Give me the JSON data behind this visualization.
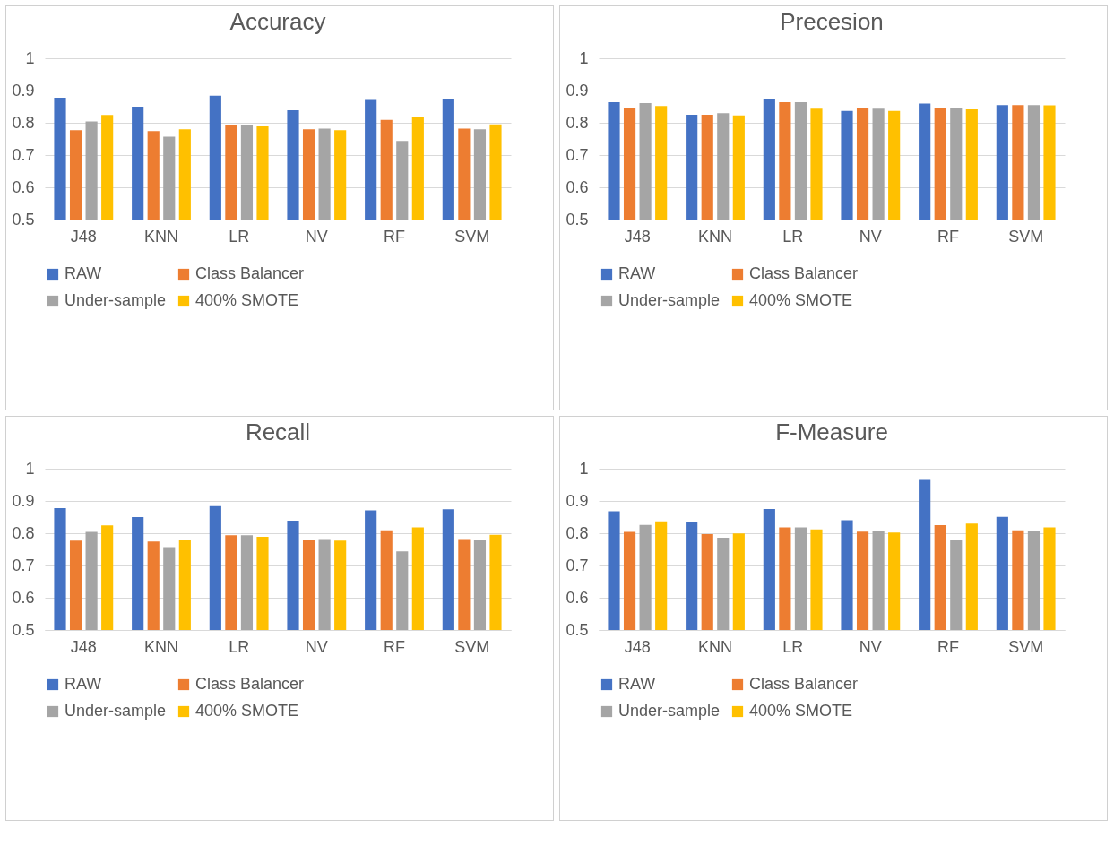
{
  "chart_data": [
    {
      "type": "bar",
      "title": "Accuracy",
      "categories": [
        "J48",
        "KNN",
        "LR",
        "NV",
        "RF",
        "SVM"
      ],
      "ylim": [
        0.5,
        1
      ],
      "yticks": [
        0.5,
        0.6,
        0.7,
        0.8,
        0.9,
        1
      ],
      "grid": "y",
      "legend": "bottom",
      "series": [
        {
          "name": "RAW",
          "color": "#4472c4",
          "values": [
            0.878,
            0.85,
            0.884,
            0.839,
            0.871,
            0.874
          ]
        },
        {
          "name": "Class Balancer",
          "color": "#ed7d31",
          "values": [
            0.777,
            0.774,
            0.794,
            0.78,
            0.809,
            0.782
          ]
        },
        {
          "name": "Under-sample",
          "color": "#a5a5a5",
          "values": [
            0.804,
            0.757,
            0.794,
            0.782,
            0.744,
            0.78
          ]
        },
        {
          "name": "400% SMOTE",
          "color": "#ffc000",
          "values": [
            0.824,
            0.78,
            0.789,
            0.777,
            0.818,
            0.795
          ]
        }
      ]
    },
    {
      "type": "bar",
      "title": "Precesion",
      "categories": [
        "J48",
        "KNN",
        "LR",
        "NV",
        "RF",
        "SVM"
      ],
      "ylim": [
        0.5,
        1
      ],
      "yticks": [
        0.5,
        0.6,
        0.7,
        0.8,
        0.9,
        1
      ],
      "grid": "y",
      "legend": "bottom",
      "series": [
        {
          "name": "RAW",
          "color": "#4472c4",
          "values": [
            0.864,
            0.825,
            0.872,
            0.837,
            0.86,
            0.855
          ]
        },
        {
          "name": "Class Balancer",
          "color": "#ed7d31",
          "values": [
            0.846,
            0.825,
            0.864,
            0.846,
            0.845,
            0.855
          ]
        },
        {
          "name": "Under-sample",
          "color": "#a5a5a5",
          "values": [
            0.861,
            0.83,
            0.864,
            0.844,
            0.845,
            0.855
          ]
        },
        {
          "name": "400% SMOTE",
          "color": "#ffc000",
          "values": [
            0.852,
            0.823,
            0.844,
            0.837,
            0.842,
            0.854
          ]
        }
      ]
    },
    {
      "type": "bar",
      "title": "Recall",
      "categories": [
        "J48",
        "KNN",
        "LR",
        "NV",
        "RF",
        "SVM"
      ],
      "ylim": [
        0.5,
        1
      ],
      "yticks": [
        0.5,
        0.6,
        0.7,
        0.8,
        0.9,
        1
      ],
      "grid": "y",
      "legend": "bottom",
      "series": [
        {
          "name": "RAW",
          "color": "#4472c4",
          "values": [
            0.878,
            0.85,
            0.884,
            0.839,
            0.871,
            0.874
          ]
        },
        {
          "name": "Class Balancer",
          "color": "#ed7d31",
          "values": [
            0.777,
            0.774,
            0.794,
            0.78,
            0.809,
            0.782
          ]
        },
        {
          "name": "Under-sample",
          "color": "#a5a5a5",
          "values": [
            0.804,
            0.757,
            0.794,
            0.782,
            0.744,
            0.78
          ]
        },
        {
          "name": "400% SMOTE",
          "color": "#ffc000",
          "values": [
            0.824,
            0.78,
            0.789,
            0.777,
            0.818,
            0.795
          ]
        }
      ]
    },
    {
      "type": "bar",
      "title": "F-Measure",
      "categories": [
        "J48",
        "KNN",
        "LR",
        "NV",
        "RF",
        "SVM"
      ],
      "ylim": [
        0.5,
        1
      ],
      "yticks": [
        0.5,
        0.6,
        0.7,
        0.8,
        0.9,
        1
      ],
      "grid": "y",
      "legend": "bottom",
      "series": [
        {
          "name": "RAW",
          "color": "#4472c4",
          "values": [
            0.868,
            0.835,
            0.875,
            0.84,
            0.965,
            0.851
          ]
        },
        {
          "name": "Class Balancer",
          "color": "#ed7d31",
          "values": [
            0.804,
            0.797,
            0.818,
            0.805,
            0.825,
            0.809
          ]
        },
        {
          "name": "Under-sample",
          "color": "#a5a5a5",
          "values": [
            0.826,
            0.786,
            0.818,
            0.806,
            0.779,
            0.807
          ]
        },
        {
          "name": "400% SMOTE",
          "color": "#ffc000",
          "values": [
            0.837,
            0.799,
            0.812,
            0.802,
            0.83,
            0.818
          ]
        }
      ]
    }
  ]
}
